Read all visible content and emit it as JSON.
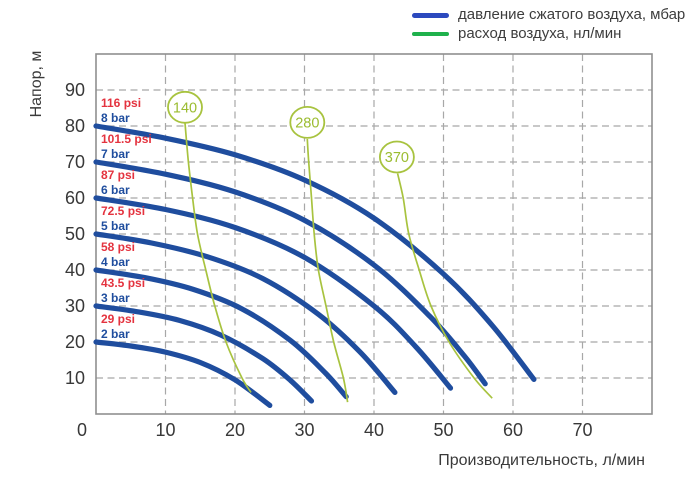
{
  "legend": {
    "items": [
      {
        "series": "pressure",
        "label": "давление сжатого воздуха, мбар"
      },
      {
        "series": "air_flow",
        "label": "расход воздуха, нл/мин"
      }
    ]
  },
  "chart_data": {
    "type": "line",
    "title": "",
    "xlabel": "Производительность, л/мин",
    "ylabel": "Напор, м",
    "xlim": [
      0,
      80
    ],
    "ylim": [
      0,
      100
    ],
    "x_ticks": [
      0,
      10,
      20,
      30,
      40,
      50,
      60,
      70
    ],
    "y_ticks": [
      10,
      20,
      30,
      40,
      50,
      60,
      70,
      80,
      90
    ],
    "grid": "dashed",
    "legend_position": "top-right",
    "series": [
      {
        "name": "2 bar",
        "psi_label": "29 psi",
        "bar_label": "2 bar",
        "head_start_m": 20,
        "flow_max_lmin": 25,
        "points": [
          [
            0,
            20
          ],
          [
            5,
            18.9
          ],
          [
            10,
            17.2
          ],
          [
            15,
            14.3
          ],
          [
            20,
            9.5
          ],
          [
            25,
            2.4
          ]
        ]
      },
      {
        "name": "3 bar",
        "psi_label": "43.5 psi",
        "bar_label": "3 bar",
        "head_start_m": 30,
        "flow_max_lmin": 31,
        "points": [
          [
            0,
            30
          ],
          [
            6,
            28.4
          ],
          [
            12,
            26
          ],
          [
            18,
            21.9
          ],
          [
            24,
            15.4
          ],
          [
            28,
            9.3
          ],
          [
            31,
            3.6
          ]
        ]
      },
      {
        "name": "4 bar",
        "psi_label": "58 psi",
        "bar_label": "4 bar",
        "head_start_m": 40,
        "flow_max_lmin": 36,
        "points": [
          [
            0,
            40
          ],
          [
            7,
            37.9
          ],
          [
            14,
            34.6
          ],
          [
            21,
            29.2
          ],
          [
            28,
            20.4
          ],
          [
            33,
            11.4
          ],
          [
            36,
            4.8
          ]
        ]
      },
      {
        "name": "5 bar",
        "psi_label": "72.5 psi",
        "bar_label": "5 bar",
        "head_start_m": 50,
        "flow_max_lmin": 43,
        "points": [
          [
            0,
            50
          ],
          [
            8,
            47.5
          ],
          [
            16,
            43.7
          ],
          [
            24,
            37.6
          ],
          [
            32,
            27.7
          ],
          [
            38,
            17.2
          ],
          [
            43,
            6
          ]
        ]
      },
      {
        "name": "6 bar",
        "psi_label": "87 psi",
        "bar_label": "6 bar",
        "head_start_m": 60,
        "flow_max_lmin": 51,
        "points": [
          [
            0,
            60
          ],
          [
            10,
            56.8
          ],
          [
            20,
            51.8
          ],
          [
            30,
            43.5
          ],
          [
            40,
            30
          ],
          [
            46,
            18.7
          ],
          [
            51,
            7.2
          ]
        ]
      },
      {
        "name": "7 bar",
        "psi_label": "101.5 psi",
        "bar_label": "7 bar",
        "head_start_m": 70,
        "flow_max_lmin": 56,
        "points": [
          [
            0,
            70
          ],
          [
            10,
            66.6
          ],
          [
            20,
            61.7
          ],
          [
            30,
            53.8
          ],
          [
            40,
            41.4
          ],
          [
            48,
            27.2
          ],
          [
            53,
            16.1
          ],
          [
            56,
            8.4
          ]
        ]
      },
      {
        "name": "8 bar",
        "psi_label": "116 psi",
        "bar_label": "8 bar",
        "head_start_m": 80,
        "flow_max_lmin": 63,
        "points": [
          [
            0,
            80
          ],
          [
            10,
            76.6
          ],
          [
            20,
            72
          ],
          [
            30,
            65
          ],
          [
            40,
            54.4
          ],
          [
            50,
            38.9
          ],
          [
            57,
            24.6
          ],
          [
            63,
            9.6
          ]
        ]
      }
    ],
    "air_flow_lines": [
      {
        "label": "140",
        "circle_center": [
          12.8,
          85.2
        ],
        "points": [
          [
            12.8,
            80.8
          ],
          [
            13.3,
            70
          ],
          [
            13.9,
            60
          ],
          [
            14.6,
            50
          ],
          [
            15.8,
            40
          ],
          [
            17.1,
            30
          ],
          [
            18.7,
            20
          ],
          [
            21,
            10
          ],
          [
            22.3,
            6
          ]
        ]
      },
      {
        "label": "280",
        "circle_center": [
          30.4,
          81
        ],
        "points": [
          [
            30.4,
            76.4
          ],
          [
            30.6,
            70
          ],
          [
            31,
            60
          ],
          [
            31.4,
            50
          ],
          [
            32,
            40
          ],
          [
            33.1,
            30
          ],
          [
            34.2,
            20
          ],
          [
            35.6,
            10
          ],
          [
            36.2,
            3.3
          ]
        ]
      },
      {
        "label": "370",
        "circle_center": [
          43.3,
          71.4
        ],
        "points": [
          [
            43.4,
            66.8
          ],
          [
            44.2,
            60
          ],
          [
            45,
            50
          ],
          [
            46.5,
            40
          ],
          [
            48.2,
            30
          ],
          [
            50.8,
            20
          ],
          [
            54.4,
            10
          ],
          [
            57,
            4.4
          ]
        ]
      }
    ],
    "colors": {
      "pressure_curve": "#1f4d9e",
      "legend_pressure": "#2c49be",
      "legend_air_flow": "#1fb14c",
      "air_flow_line": "#a8c33f",
      "air_flow_badge_text": "#9bbc30",
      "psi_label": "#e4333f",
      "bar_label": "#1f4d9e",
      "grid": "#a8a8a8",
      "border": "#8f8f8f",
      "tick_text": "#383838"
    }
  }
}
